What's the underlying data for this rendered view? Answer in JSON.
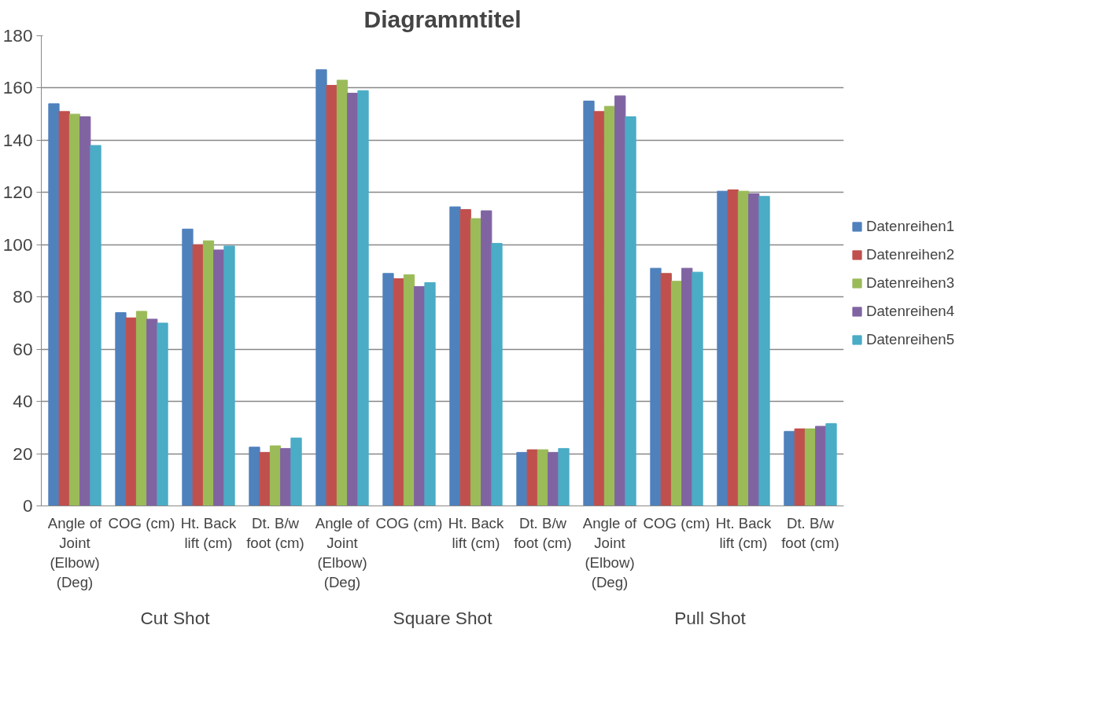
{
  "chart_data": {
    "type": "bar",
    "title": "Diagrammtitel",
    "categories": [
      "Angle of Joint (Elbow) (Deg)",
      "COG (cm)",
      "Ht. Back lift (cm)",
      "Dt. B/w foot (cm)",
      "Angle of Joint (Elbow) (Deg)",
      "COG (cm)",
      "Ht. Back lift (cm)",
      "Dt. B/w foot (cm)",
      "Angle of Joint (Elbow) (Deg)",
      "COG (cm)",
      "Ht. Back lift (cm)",
      "Dt. B/w foot (cm)"
    ],
    "series": [
      {
        "name": "Datenreihen1",
        "color": "#4f81bd",
        "values": [
          154,
          74,
          106,
          22.5,
          167,
          89,
          114.5,
          20.5,
          155,
          91,
          120.5,
          28.5
        ]
      },
      {
        "name": "Datenreihen2",
        "color": "#c0504d",
        "values": [
          151,
          72,
          100,
          20.5,
          161,
          87,
          113.5,
          21.5,
          151,
          89,
          121,
          29.5
        ]
      },
      {
        "name": "Datenreihen3",
        "color": "#9bbb59",
        "values": [
          150,
          74.5,
          101.5,
          23,
          163,
          88.5,
          110,
          21.5,
          153,
          86,
          120.5,
          29.5
        ]
      },
      {
        "name": "Datenreihen4",
        "color": "#8064a2",
        "values": [
          149,
          71.5,
          98,
          22,
          158,
          84,
          113,
          20.5,
          157,
          91,
          119.5,
          30.5
        ]
      },
      {
        "name": "Datenreihen5",
        "color": "#4bacc6",
        "values": [
          138,
          70,
          99.5,
          26,
          159,
          85.5,
          100.5,
          22,
          149,
          89.5,
          118.5,
          31.5
        ]
      }
    ],
    "annotations": [
      "Cut Shot",
      "Square Shot",
      "Pull Shot"
    ],
    "ylim": [
      0,
      180
    ],
    "yticks": [
      0,
      20,
      40,
      60,
      80,
      100,
      120,
      140,
      160,
      180
    ],
    "grid": "y",
    "legend": "right"
  }
}
